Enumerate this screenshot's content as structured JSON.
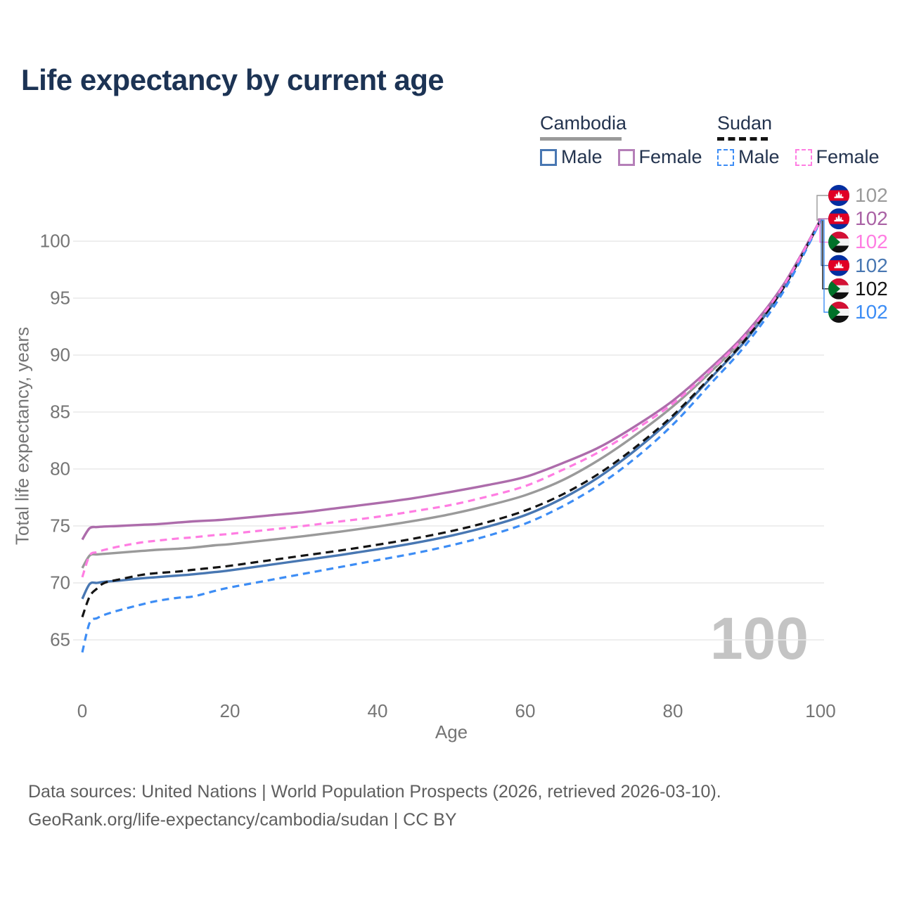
{
  "title": "Life expectancy by current age",
  "watermark": "100",
  "legend": {
    "groups": [
      {
        "name": "Cambodia",
        "line_style": "solid",
        "underline_color": "#9a9a9a",
        "items": [
          {
            "label": "Male",
            "color": "#4877b2",
            "dashed": false
          },
          {
            "label": "Female",
            "color": "#b57fb8",
            "dashed": false
          }
        ]
      },
      {
        "name": "Sudan",
        "line_style": "dashed",
        "underline_color": "#141414",
        "items": [
          {
            "label": "Male",
            "color": "#3d8df5",
            "dashed": true
          },
          {
            "label": "Female",
            "color": "#ff7de2",
            "dashed": true
          }
        ]
      }
    ]
  },
  "y_axis": {
    "title": "Total life expectancy, years",
    "ticks": [
      65,
      70,
      75,
      80,
      85,
      90,
      95,
      100
    ]
  },
  "x_axis": {
    "title": "Age",
    "ticks": [
      0,
      20,
      40,
      60,
      80,
      100
    ]
  },
  "end_labels": [
    {
      "series": "Cambodia Total",
      "flag": "cambodia",
      "value": "102",
      "color": "#9a9a9a"
    },
    {
      "series": "Cambodia Female",
      "flag": "cambodia",
      "value": "102",
      "color": "#aa62a5"
    },
    {
      "series": "Sudan Female",
      "flag": "sudan",
      "value": "102",
      "color": "#ff7de2"
    },
    {
      "series": "Cambodia Male",
      "flag": "cambodia",
      "value": "102",
      "color": "#4877b2"
    },
    {
      "series": "Sudan Total",
      "flag": "sudan",
      "value": "102",
      "color": "#141414"
    },
    {
      "series": "Sudan Male",
      "flag": "sudan",
      "value": "102",
      "color": "#3d8df5"
    }
  ],
  "footer": {
    "line1": "Data sources: United Nations | World Population Prospects (2026, retrieved 2026-03-10).",
    "line2": "GeoRank.org/life-expectancy/cambodia/sudan | CC BY"
  },
  "chart_data": {
    "type": "line",
    "title": "Life expectancy by current age",
    "xlabel": "Age",
    "ylabel": "Total life expectancy, years",
    "xlim": [
      0,
      100
    ],
    "ylim": [
      63,
      103
    ],
    "grid": "horizontal",
    "legend_position": "top-right",
    "x": [
      0,
      1,
      2,
      3,
      5,
      8,
      10,
      13,
      15,
      18,
      20,
      25,
      30,
      35,
      40,
      45,
      50,
      55,
      60,
      65,
      70,
      75,
      80,
      85,
      90,
      95,
      100
    ],
    "series": [
      {
        "name": "Cambodia Total",
        "country": "Cambodia",
        "sex": "Total",
        "color": "#9a9a9a",
        "dash": null,
        "values": [
          71.3,
          72.4,
          72.5,
          72.55,
          72.65,
          72.8,
          72.9,
          73.0,
          73.1,
          73.3,
          73.4,
          73.75,
          74.1,
          74.5,
          74.95,
          75.45,
          76.05,
          76.8,
          77.7,
          79.0,
          80.8,
          83.0,
          85.5,
          88.45,
          91.75,
          96.05,
          101.85
        ]
      },
      {
        "name": "Cambodia Male",
        "country": "Cambodia",
        "sex": "Male",
        "color": "#4877b2",
        "dash": null,
        "values": [
          68.6,
          69.9,
          70.0,
          70.1,
          70.2,
          70.4,
          70.5,
          70.65,
          70.75,
          70.95,
          71.1,
          71.55,
          72.0,
          72.45,
          72.95,
          73.5,
          74.15,
          74.95,
          75.95,
          77.4,
          79.3,
          81.7,
          84.5,
          87.9,
          91.4,
          95.9,
          101.8
        ]
      },
      {
        "name": "Cambodia Female",
        "country": "Cambodia",
        "sex": "Female",
        "color": "#ad6cab",
        "dash": null,
        "values": [
          73.8,
          74.8,
          74.9,
          74.95,
          75.0,
          75.1,
          75.15,
          75.3,
          75.4,
          75.5,
          75.6,
          75.9,
          76.2,
          76.6,
          77.0,
          77.45,
          78.0,
          78.6,
          79.3,
          80.5,
          81.9,
          83.8,
          86.0,
          88.8,
          92.0,
          96.2,
          101.9
        ]
      },
      {
        "name": "Sudan Total",
        "country": "Sudan",
        "sex": "Total",
        "color": "#141414",
        "dash": "11 7",
        "values": [
          67.0,
          68.8,
          69.5,
          70.0,
          70.3,
          70.7,
          70.85,
          71.0,
          71.15,
          71.35,
          71.5,
          71.95,
          72.4,
          72.85,
          73.35,
          73.9,
          74.55,
          75.35,
          76.35,
          77.75,
          79.6,
          81.95,
          84.7,
          88.0,
          91.5,
          95.95,
          101.8
        ]
      },
      {
        "name": "Sudan Male",
        "country": "Sudan",
        "sex": "Male",
        "color": "#3d8df5",
        "dash": "10 7",
        "values": [
          63.9,
          66.5,
          66.9,
          67.2,
          67.6,
          68.1,
          68.4,
          68.7,
          68.8,
          69.3,
          69.6,
          70.2,
          70.8,
          71.4,
          72.0,
          72.6,
          73.3,
          74.15,
          75.2,
          76.7,
          78.6,
          81.0,
          83.9,
          87.4,
          91.0,
          95.6,
          101.75
        ]
      },
      {
        "name": "Sudan Female",
        "country": "Sudan",
        "sex": "Female",
        "color": "#ff7de2",
        "dash": "10 7",
        "values": [
          70.5,
          72.4,
          72.7,
          72.9,
          73.2,
          73.55,
          73.7,
          73.9,
          74.0,
          74.2,
          74.3,
          74.65,
          75.0,
          75.4,
          75.8,
          76.3,
          76.85,
          77.6,
          78.5,
          79.9,
          81.5,
          83.5,
          85.75,
          88.6,
          91.85,
          96.1,
          101.85
        ]
      }
    ]
  }
}
